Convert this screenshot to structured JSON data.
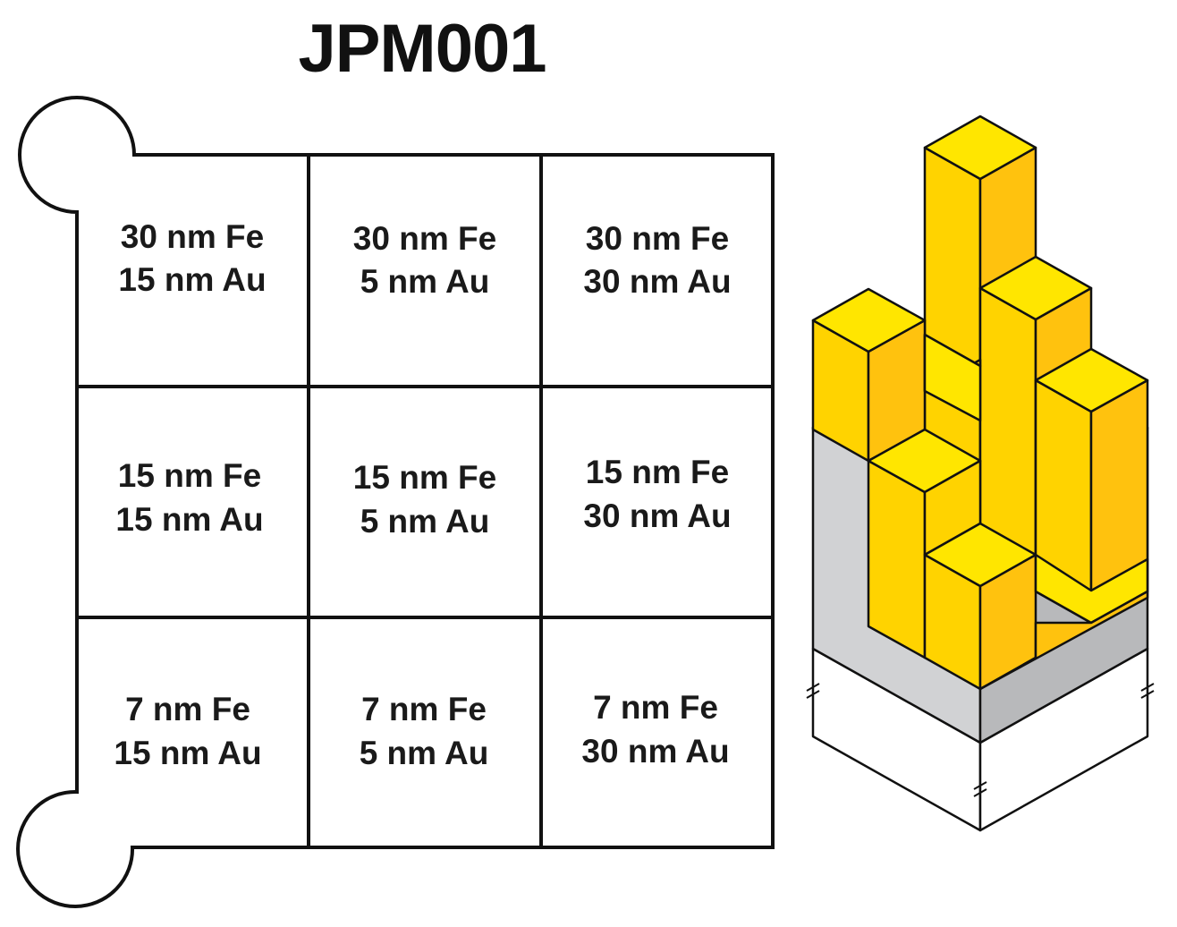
{
  "title": "JPM001",
  "grid": {
    "rows": [
      [
        {
          "fe": "30 nm Fe",
          "au": "15 nm Au"
        },
        {
          "fe": "30 nm Fe",
          "au": "5 nm Au"
        },
        {
          "fe": "30 nm Fe",
          "au": "30 nm Au"
        }
      ],
      [
        {
          "fe": "15 nm Fe",
          "au": "15 nm Au"
        },
        {
          "fe": "15 nm Fe",
          "au": "5 nm Au"
        },
        {
          "fe": "15 nm Fe",
          "au": "30 nm Au"
        }
      ],
      [
        {
          "fe": "7 nm Fe",
          "au": "15 nm Au"
        },
        {
          "fe": "7 nm Fe",
          "au": "5 nm Au"
        },
        {
          "fe": "7 nm Fe",
          "au": "30 nm Au"
        }
      ]
    ]
  },
  "colors": {
    "gold_top": "#FFE600",
    "gold_left": "#FFD300",
    "gold_right": "#FFC20E",
    "silver_front": "#D1D2D4",
    "silver_side": "#B8B9BB",
    "outline": "#111111"
  }
}
